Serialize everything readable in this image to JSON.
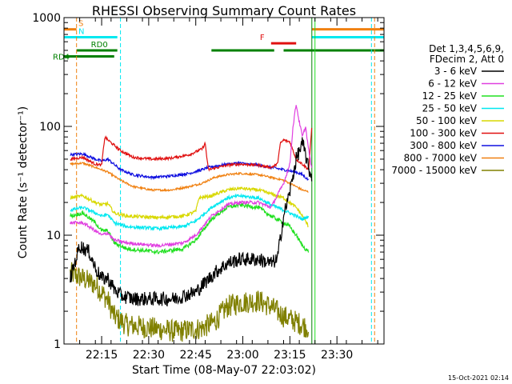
{
  "chart_data": {
    "type": "line",
    "title": "RHESSI Observing Summary Count Rates",
    "xlabel": "Start Time (08-May-07 22:03:02)",
    "ylabel": "Count Rate (s⁻¹ detector⁻¹)",
    "ylog": true,
    "ylim": [
      1,
      1000
    ],
    "xlim_min": [
      0,
      102
    ],
    "x_unit": "minutes after 22:03:02",
    "x_ticks": [
      {
        "t": 12,
        "label": "22:15"
      },
      {
        "t": 27,
        "label": "22:30"
      },
      {
        "t": 42,
        "label": "22:45"
      },
      {
        "t": 57,
        "label": "23:00"
      },
      {
        "t": 72,
        "label": "23:15"
      },
      {
        "t": 87,
        "label": "23:30"
      }
    ],
    "y_ticks": [
      {
        "v": 1,
        "label": "1"
      },
      {
        "v": 10,
        "label": "10"
      },
      {
        "v": 100,
        "label": "100"
      },
      {
        "v": 1000,
        "label": "1000"
      }
    ],
    "legend": {
      "position": "right",
      "header": [
        "Det 1,3,4,5,6,9,",
        "FDecim 2, Att 0"
      ],
      "entries": [
        {
          "name": "3 - 6 keV",
          "color": "#000000"
        },
        {
          "name": "6 - 12 keV",
          "color": "#e040e0"
        },
        {
          "name": "12 - 25 keV",
          "color": "#20e020"
        },
        {
          "name": "25 - 50 keV",
          "color": "#00e8f0"
        },
        {
          "name": "50 - 100 keV",
          "color": "#d8d800"
        },
        {
          "name": "100 - 300 keV",
          "color": "#e01010"
        },
        {
          "name": "300 - 800 keV",
          "color": "#1010e0"
        },
        {
          "name": "800 - 7000 keV",
          "color": "#f08010"
        },
        {
          "name": "7000 - 15000 keV",
          "color": "#808000"
        }
      ]
    },
    "series": [
      {
        "name": "3 - 6 keV",
        "color": "#000000",
        "noise": 0.22,
        "points": [
          [
            2,
            4
          ],
          [
            5,
            8
          ],
          [
            8,
            7
          ],
          [
            10,
            5
          ],
          [
            12,
            4
          ],
          [
            14,
            4
          ],
          [
            16,
            3.2
          ],
          [
            18,
            2.8
          ],
          [
            22,
            2.6
          ],
          [
            28,
            2.6
          ],
          [
            35,
            2.6
          ],
          [
            42,
            3
          ],
          [
            48,
            4.5
          ],
          [
            52,
            5.5
          ],
          [
            56,
            6
          ],
          [
            62,
            6
          ],
          [
            66,
            5.5
          ],
          [
            68,
            6
          ],
          [
            70,
            15
          ],
          [
            72,
            25
          ],
          [
            74,
            50
          ],
          [
            76,
            70
          ],
          [
            77,
            55
          ],
          [
            78,
            40
          ],
          [
            79,
            35
          ]
        ]
      },
      {
        "name": "6 - 12 keV",
        "color": "#e040e0",
        "noise": 0.05,
        "points": [
          [
            2,
            13
          ],
          [
            6,
            13
          ],
          [
            10,
            11
          ],
          [
            12,
            10
          ],
          [
            14,
            10.5
          ],
          [
            16,
            9
          ],
          [
            20,
            8.5
          ],
          [
            30,
            8
          ],
          [
            38,
            8.5
          ],
          [
            42,
            10
          ],
          [
            47,
            15
          ],
          [
            52,
            19
          ],
          [
            56,
            20
          ],
          [
            62,
            20
          ],
          [
            66,
            18
          ],
          [
            70,
            30
          ],
          [
            72,
            45
          ],
          [
            73,
            100
          ],
          [
            74,
            160
          ],
          [
            75,
            110
          ],
          [
            76,
            80
          ],
          [
            77,
            100
          ],
          [
            78,
            60
          ],
          [
            79,
            40
          ]
        ]
      },
      {
        "name": "12 - 25 keV",
        "color": "#20e020",
        "noise": 0.06,
        "points": [
          [
            2,
            15
          ],
          [
            6,
            16
          ],
          [
            10,
            13
          ],
          [
            12,
            11
          ],
          [
            14,
            11
          ],
          [
            16,
            8.5
          ],
          [
            20,
            7.5
          ],
          [
            30,
            7
          ],
          [
            38,
            7.5
          ],
          [
            42,
            9
          ],
          [
            47,
            14
          ],
          [
            52,
            18
          ],
          [
            56,
            19
          ],
          [
            62,
            18
          ],
          [
            66,
            15
          ],
          [
            70,
            13
          ],
          [
            72,
            12
          ],
          [
            74,
            10
          ],
          [
            76,
            8
          ],
          [
            78,
            7
          ]
        ]
      },
      {
        "name": "25 - 50 keV",
        "color": "#00e8f0",
        "noise": 0.05,
        "points": [
          [
            2,
            17
          ],
          [
            6,
            18
          ],
          [
            10,
            16
          ],
          [
            12,
            15
          ],
          [
            14,
            15.5
          ],
          [
            16,
            13
          ],
          [
            20,
            12
          ],
          [
            30,
            11.5
          ],
          [
            38,
            12
          ],
          [
            42,
            13.5
          ],
          [
            47,
            18
          ],
          [
            52,
            22
          ],
          [
            56,
            23
          ],
          [
            62,
            22
          ],
          [
            66,
            19
          ],
          [
            70,
            17
          ],
          [
            74,
            15
          ],
          [
            76,
            14
          ],
          [
            78,
            15
          ]
        ]
      },
      {
        "name": "50 - 100 keV",
        "color": "#d8d800",
        "noise": 0.05,
        "points": [
          [
            2,
            22
          ],
          [
            6,
            23
          ],
          [
            10,
            20
          ],
          [
            12,
            19
          ],
          [
            14,
            19.5
          ],
          [
            16,
            16
          ],
          [
            20,
            15
          ],
          [
            30,
            14.5
          ],
          [
            38,
            15
          ],
          [
            42,
            16.5
          ],
          [
            43,
            22
          ],
          [
            47,
            23
          ],
          [
            52,
            26
          ],
          [
            56,
            27
          ],
          [
            62,
            26
          ],
          [
            66,
            24
          ],
          [
            70,
            22
          ],
          [
            74,
            18
          ],
          [
            76,
            15
          ],
          [
            78,
            12
          ]
        ]
      },
      {
        "name": "100 - 300 keV",
        "color": "#e01010",
        "noise": 0.04,
        "points": [
          [
            2,
            50
          ],
          [
            6,
            52
          ],
          [
            10,
            45
          ],
          [
            12,
            44
          ],
          [
            13,
            80
          ],
          [
            14,
            75
          ],
          [
            18,
            60
          ],
          [
            22,
            52
          ],
          [
            28,
            50
          ],
          [
            34,
            51
          ],
          [
            40,
            55
          ],
          [
            44,
            62
          ],
          [
            45,
            70
          ],
          [
            46,
            40
          ],
          [
            52,
            44
          ],
          [
            56,
            45
          ],
          [
            62,
            44
          ],
          [
            66,
            42
          ],
          [
            68,
            45
          ],
          [
            69,
            70
          ],
          [
            70,
            75
          ],
          [
            72,
            72
          ],
          [
            74,
            50
          ],
          [
            76,
            45
          ],
          [
            78,
            40
          ],
          [
            79,
            100
          ]
        ]
      },
      {
        "name": "300 - 800 keV",
        "color": "#1010e0",
        "noise": 0.04,
        "points": [
          [
            2,
            55
          ],
          [
            6,
            56
          ],
          [
            10,
            50
          ],
          [
            12,
            48
          ],
          [
            14,
            50
          ],
          [
            18,
            40
          ],
          [
            22,
            36
          ],
          [
            28,
            34
          ],
          [
            34,
            35
          ],
          [
            40,
            37
          ],
          [
            44,
            40
          ],
          [
            46,
            42
          ],
          [
            52,
            45
          ],
          [
            56,
            46
          ],
          [
            62,
            44
          ],
          [
            66,
            42
          ],
          [
            70,
            40
          ],
          [
            74,
            38
          ],
          [
            76,
            36
          ],
          [
            78,
            32
          ]
        ]
      },
      {
        "name": "800 - 7000 keV",
        "color": "#f08010",
        "noise": 0.03,
        "points": [
          [
            2,
            45
          ],
          [
            6,
            46
          ],
          [
            10,
            42
          ],
          [
            12,
            40
          ],
          [
            14,
            38
          ],
          [
            18,
            32
          ],
          [
            22,
            28
          ],
          [
            28,
            26
          ],
          [
            34,
            26
          ],
          [
            40,
            28
          ],
          [
            44,
            30
          ],
          [
            48,
            34
          ],
          [
            52,
            36
          ],
          [
            56,
            37
          ],
          [
            62,
            36
          ],
          [
            66,
            34
          ],
          [
            70,
            32
          ],
          [
            74,
            28
          ],
          [
            76,
            26
          ],
          [
            78,
            25
          ]
        ]
      },
      {
        "name": "7000 - 15000 keV",
        "color": "#808000",
        "noise": 0.35,
        "points": [
          [
            2,
            4.5
          ],
          [
            6,
            4
          ],
          [
            10,
            3.5
          ],
          [
            12,
            3
          ],
          [
            14,
            2.5
          ],
          [
            16,
            1.8
          ],
          [
            20,
            1.5
          ],
          [
            28,
            1.4
          ],
          [
            36,
            1.3
          ],
          [
            44,
            1.4
          ],
          [
            48,
            1.6
          ],
          [
            52,
            2.2
          ],
          [
            56,
            2.4
          ],
          [
            62,
            2.5
          ],
          [
            66,
            2.2
          ],
          [
            70,
            1.8
          ],
          [
            74,
            1.6
          ],
          [
            76,
            1.5
          ],
          [
            78,
            1.4
          ]
        ]
      }
    ],
    "state_bars": [
      {
        "label": "S",
        "color": "#f08010",
        "segments": [
          [
            0,
            4
          ]
        ],
        "after": [
          [
            79,
            102
          ]
        ],
        "level": 780
      },
      {
        "label": "N",
        "color": "#00e8f0",
        "segments": [
          [
            0,
            17
          ]
        ],
        "after": [
          [
            79,
            102
          ]
        ],
        "level": 660
      },
      {
        "label": "F",
        "color": "#e01010",
        "segments": [
          [
            66,
            74
          ]
        ],
        "after": [],
        "level": 580
      },
      {
        "label": "RD0",
        "color": "#008000",
        "segments": [
          [
            4,
            17
          ],
          [
            47,
            67
          ],
          [
            70,
            102
          ]
        ],
        "after": [],
        "level": 500
      },
      {
        "label": "RD4",
        "color": "#008000",
        "segments": [
          [
            0,
            16
          ]
        ],
        "after": [],
        "level": 440
      }
    ],
    "vlines": [
      {
        "t": 0,
        "color": "#00e8f0",
        "style": "solid"
      },
      {
        "t": 4,
        "color": "#f08010",
        "style": "dashed"
      },
      {
        "t": 18,
        "color": "#00e8f0",
        "style": "dashed"
      },
      {
        "t": 79,
        "color": "#008000",
        "style": "solid"
      },
      {
        "t": 80,
        "color": "#20e020",
        "style": "solid"
      },
      {
        "t": 98,
        "color": "#00e8f0",
        "style": "dashed"
      },
      {
        "t": 99,
        "color": "#f08010",
        "style": "dashed"
      }
    ],
    "grid": false
  },
  "footer": {
    "timestamp": "15-Oct-2021 02:14"
  }
}
